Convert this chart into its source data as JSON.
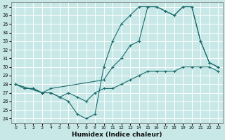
{
  "xlabel": "Humidex (Indice chaleur)",
  "bg_color": "#c8e8e8",
  "line_color": "#1a6b6b",
  "xlim": [
    -0.5,
    23.5
  ],
  "ylim": [
    23.5,
    37.5
  ],
  "yticks": [
    24,
    25,
    26,
    27,
    28,
    29,
    30,
    31,
    32,
    33,
    34,
    35,
    36,
    37
  ],
  "xticks": [
    0,
    1,
    2,
    3,
    4,
    5,
    6,
    7,
    8,
    9,
    10,
    11,
    12,
    13,
    14,
    15,
    16,
    17,
    18,
    19,
    20,
    21,
    22,
    23
  ],
  "series": [
    {
      "x": [
        0,
        1,
        2,
        3,
        4,
        5,
        6,
        7,
        8,
        9,
        10,
        11,
        12,
        13,
        14,
        15,
        16,
        17,
        18,
        19,
        20,
        21,
        22,
        23
      ],
      "y": [
        28,
        27.5,
        27.5,
        27,
        27,
        26.5,
        26,
        24.5,
        24,
        24.5,
        30,
        33,
        35,
        36,
        37,
        37,
        37,
        36.5,
        36,
        37,
        37,
        33,
        30.5,
        30
      ]
    },
    {
      "x": [
        0,
        3,
        4,
        10,
        11,
        12,
        13,
        14,
        15,
        16,
        17,
        18,
        19,
        20,
        21,
        22,
        23
      ],
      "y": [
        28,
        27,
        27.5,
        28.5,
        30,
        31,
        32.5,
        33,
        37,
        37,
        36.5,
        36,
        37,
        37,
        33,
        30.5,
        30
      ]
    },
    {
      "x": [
        0,
        1,
        2,
        3,
        4,
        5,
        6,
        7,
        8,
        9,
        10,
        11,
        12,
        13,
        14,
        15,
        16,
        17,
        18,
        19,
        20,
        21,
        22,
        23
      ],
      "y": [
        28,
        27.5,
        27.5,
        27,
        27,
        26.5,
        27,
        26.5,
        26,
        27,
        27.5,
        27.5,
        28,
        28.5,
        29,
        29.5,
        29.5,
        29.5,
        29.5,
        30,
        30,
        30,
        30,
        29.5
      ]
    }
  ]
}
